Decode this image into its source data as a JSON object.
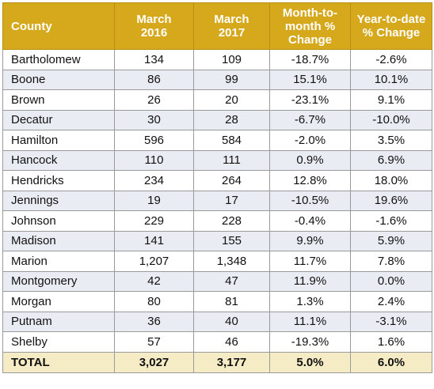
{
  "headers": [
    "County",
    "March\n2016",
    "March\n2017",
    "Month-to-\nmonth %\nChange",
    "Year-to-date\n% Change"
  ],
  "rows": [
    {
      "county": "Bartholomew",
      "m2016": "134",
      "m2017": "109",
      "mtm": "-18.7%",
      "ytd": "-2.6%"
    },
    {
      "county": "Boone",
      "m2016": "86",
      "m2017": "99",
      "mtm": "15.1%",
      "ytd": "10.1%"
    },
    {
      "county": "Brown",
      "m2016": "26",
      "m2017": "20",
      "mtm": "-23.1%",
      "ytd": "9.1%"
    },
    {
      "county": "Decatur",
      "m2016": "30",
      "m2017": "28",
      "mtm": "-6.7%",
      "ytd": "-10.0%"
    },
    {
      "county": "Hamilton",
      "m2016": "596",
      "m2017": "584",
      "mtm": "-2.0%",
      "ytd": "3.5%"
    },
    {
      "county": "Hancock",
      "m2016": "110",
      "m2017": "111",
      "mtm": "0.9%",
      "ytd": "6.9%"
    },
    {
      "county": "Hendricks",
      "m2016": "234",
      "m2017": "264",
      "mtm": "12.8%",
      "ytd": "18.0%"
    },
    {
      "county": "Jennings",
      "m2016": "19",
      "m2017": "17",
      "mtm": "-10.5%",
      "ytd": "19.6%"
    },
    {
      "county": "Johnson",
      "m2016": "229",
      "m2017": "228",
      "mtm": "-0.4%",
      "ytd": "-1.6%"
    },
    {
      "county": "Madison",
      "m2016": "141",
      "m2017": "155",
      "mtm": "9.9%",
      "ytd": "5.9%"
    },
    {
      "county": "Marion",
      "m2016": "1,207",
      "m2017": "1,348",
      "mtm": "11.7%",
      "ytd": "7.8%"
    },
    {
      "county": "Montgomery",
      "m2016": "42",
      "m2017": "47",
      "mtm": "11.9%",
      "ytd": "0.0%"
    },
    {
      "county": "Morgan",
      "m2016": "80",
      "m2017": "81",
      "mtm": "1.3%",
      "ytd": "2.4%"
    },
    {
      "county": "Putnam",
      "m2016": "36",
      "m2017": "40",
      "mtm": "11.1%",
      "ytd": "-3.1%"
    },
    {
      "county": "Shelby",
      "m2016": "57",
      "m2017": "46",
      "mtm": "-19.3%",
      "ytd": "1.6%"
    }
  ],
  "total": {
    "county": "TOTAL",
    "m2016": "3,027",
    "m2017": "3,177",
    "mtm": "5.0%",
    "ytd": "6.0%"
  },
  "colors": {
    "header_bg": "#d6a81c",
    "header_text": "#ffffff",
    "alt_row_bg": "#e9ecf2",
    "total_row_bg": "#f5ecc6"
  }
}
